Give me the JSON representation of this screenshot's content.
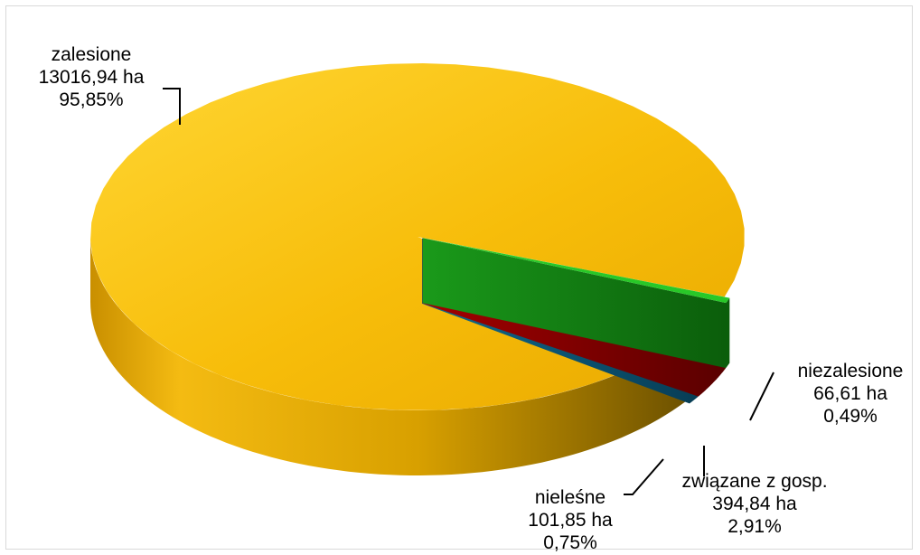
{
  "chart_data": {
    "type": "pie",
    "style": "3d",
    "categories": [
      "zalesione",
      "związane z gosp.",
      "nieleśne",
      "niezalesione"
    ],
    "values_ha": [
      13016.94,
      394.84,
      101.85,
      66.61
    ],
    "percent": [
      95.85,
      2.91,
      0.75,
      0.49
    ],
    "colors": [
      "#f5b800",
      "#ff1a1a",
      "#1aa3e0",
      "#28c828"
    ],
    "labels": [
      {
        "name": "zalesione",
        "value": "13016,94 ha",
        "percent": "95,85%"
      },
      {
        "name": "związane z gosp.",
        "value": "394,84 ha",
        "percent": "2,91%"
      },
      {
        "name": "nieleśne",
        "value": "101,85 ha",
        "percent": "0,75%"
      },
      {
        "name": "niezalesione",
        "value": "66,61 ha",
        "percent": "0,49%"
      }
    ],
    "legend": "none",
    "grid": false
  }
}
